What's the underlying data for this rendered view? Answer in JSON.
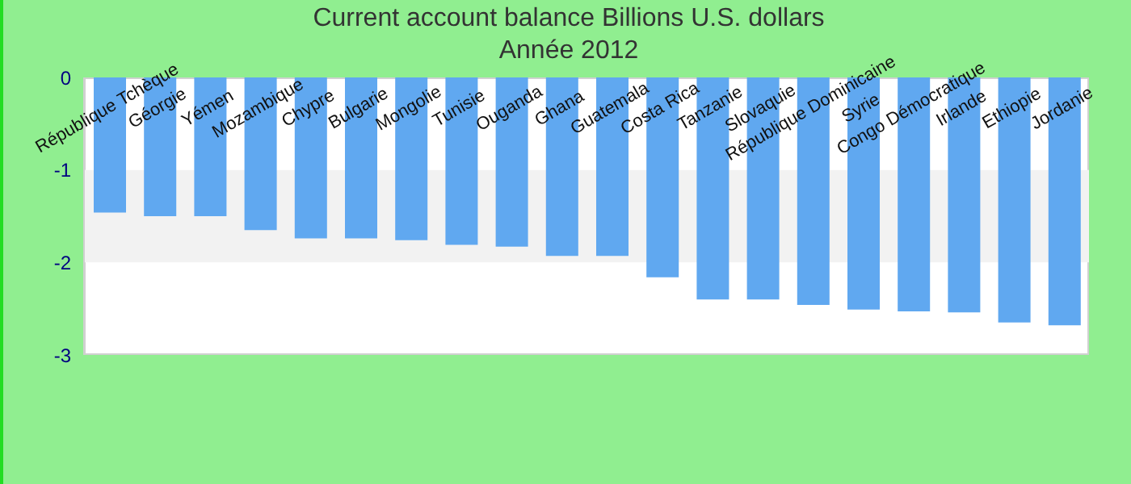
{
  "chart_data": {
    "type": "bar",
    "title": "Current account balance Billions U.S. dollars",
    "subtitle": "Année 2012",
    "categories": [
      "République Tchèque",
      "Géorgie",
      "Yémen",
      "Mozambique",
      "Chypre",
      "Bulgarie",
      "Mongolie",
      "Tunisie",
      "Ouganda",
      "Ghana",
      "Guatemala",
      "Costa Rica",
      "Tanzanie",
      "Slovaquie",
      "République Dominicaine",
      "Syrie",
      "Congo Démocratique",
      "Irlande",
      "Ethiopie",
      "Jordanie"
    ],
    "values": [
      -1.46,
      -1.5,
      -1.5,
      -1.65,
      -1.74,
      -1.74,
      -1.76,
      -1.81,
      -1.83,
      -1.93,
      -1.93,
      -2.16,
      -2.4,
      -2.4,
      -2.46,
      -2.51,
      -2.53,
      -2.54,
      -2.65,
      -2.68
    ],
    "color": "#60a8f0",
    "ylim": [
      -3,
      0
    ],
    "yticks": [
      0,
      -1,
      -2,
      -3
    ],
    "bands": [
      {
        "axis": "y",
        "from": -1,
        "to": -2,
        "color": "#f2f2f2"
      }
    ]
  }
}
